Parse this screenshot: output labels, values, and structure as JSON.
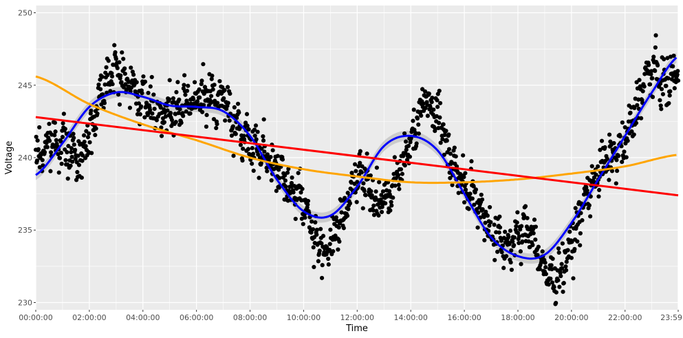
{
  "chart_data": {
    "type": "scatter",
    "title": "",
    "xlabel": "Time",
    "ylabel": "Voltage",
    "xlim": [
      "00:00:00",
      "23:59:00"
    ],
    "ylim": [
      229.5,
      250.5
    ],
    "x_ticks": [
      "00:00:00",
      "02:00:00",
      "04:00:00",
      "06:00:00",
      "08:00:00",
      "10:00:00",
      "12:00:00",
      "14:00:00",
      "16:00:00",
      "18:00:00",
      "20:00:00",
      "22:00:00",
      "23:59"
    ],
    "y_ticks": [
      230,
      235,
      240,
      245,
      250
    ],
    "grid": true,
    "legend": "none",
    "colors": {
      "panel": "#ebebeb",
      "grid": "#ffffff",
      "points": "#000000",
      "ribbon": "#bdbdbd"
    },
    "points_summary": "approximately 1,400 black points, one per minute across the day; the anchor values below outline the bulk of the cloud and are spread with about ±1.2 V of scatter",
    "point_anchors": {
      "x": [
        "00:00",
        "00:30",
        "01:00",
        "01:30",
        "02:00",
        "02:30",
        "03:00",
        "03:30",
        "04:00",
        "05:00",
        "06:00",
        "07:00",
        "07:30",
        "08:00",
        "08:30",
        "09:00",
        "09:30",
        "10:00",
        "10:30",
        "11:00",
        "11:30",
        "12:00",
        "12:30",
        "13:00",
        "13:30",
        "14:00",
        "14:30",
        "15:00",
        "15:30",
        "16:00",
        "16:30",
        "17:00",
        "17:30",
        "18:00",
        "18:30",
        "19:00",
        "19:30",
        "20:00",
        "20:30",
        "21:00",
        "21:30",
        "22:00",
        "22:30",
        "23:00",
        "23:30",
        "23:59"
      ],
      "y": [
        240,
        241,
        241,
        240,
        241.5,
        245,
        246,
        245,
        244,
        243,
        244,
        244,
        242,
        241,
        240.5,
        239,
        238,
        237,
        234,
        234,
        236,
        239,
        237.5,
        237,
        239,
        241,
        244,
        243,
        240,
        238,
        237,
        235,
        234,
        234.5,
        235,
        232,
        232,
        234,
        237,
        239,
        240,
        241,
        244,
        246,
        245,
        246
      ]
    },
    "series": [
      {
        "type": "line",
        "color": "#0000ff",
        "x": [
          "00:00",
          "01:00",
          "02:00",
          "03:00",
          "04:00",
          "05:00",
          "06:00",
          "07:00",
          "08:00",
          "09:00",
          "10:00",
          "11:00",
          "12:00",
          "13:00",
          "14:00",
          "15:00",
          "16:00",
          "17:00",
          "18:00",
          "19:00",
          "20:00",
          "21:00",
          "22:00",
          "23:00",
          "23:59"
        ],
        "y": [
          238.8,
          241.0,
          243.5,
          244.5,
          244.2,
          243.6,
          243.5,
          243.2,
          241.5,
          238.5,
          236.3,
          236.0,
          238.0,
          240.8,
          241.5,
          240.5,
          237.5,
          234.5,
          233.2,
          233.3,
          235.5,
          238.5,
          241.5,
          244.5,
          247.0
        ]
      },
      {
        "type": "line",
        "color": "#ffa500",
        "x": [
          "00:00",
          "02:00",
          "04:00",
          "06:00",
          "08:00",
          "10:00",
          "12:00",
          "14:00",
          "16:00",
          "18:00",
          "20:00",
          "22:00",
          "23:59"
        ],
        "y": [
          245.6,
          243.7,
          242.3,
          241.2,
          240.0,
          239.2,
          238.7,
          238.3,
          238.3,
          238.5,
          238.9,
          239.4,
          240.2
        ]
      },
      {
        "type": "line",
        "color": "#ff0000",
        "x": [
          "00:00",
          "23:59"
        ],
        "y": [
          242.8,
          237.4
        ]
      }
    ]
  }
}
